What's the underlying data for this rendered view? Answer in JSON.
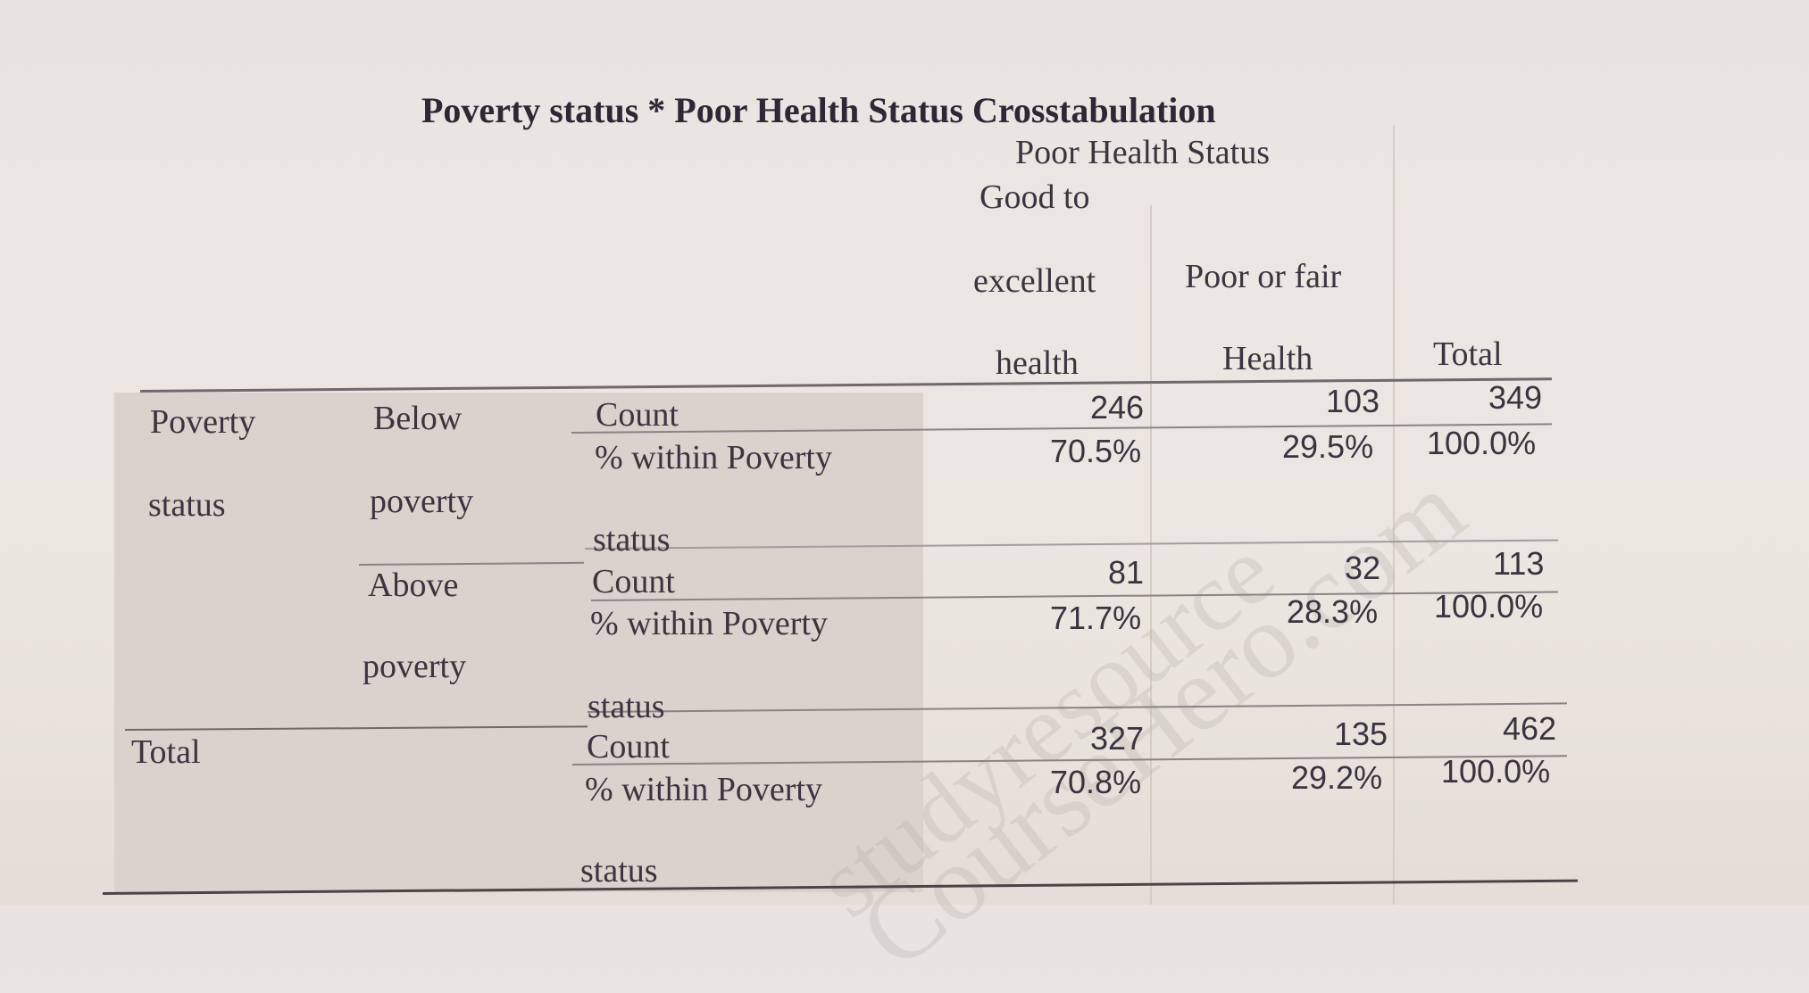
{
  "table": {
    "title": "Poverty status * Poor Health Status Crosstabulation",
    "column_group_header": "Poor Health Status",
    "columns": {
      "good": [
        "Good to",
        "excellent",
        "health"
      ],
      "poor": [
        "Poor or fair",
        "Health"
      ],
      "total": "Total"
    },
    "row_var": [
      "Poverty",
      "status"
    ],
    "rows": [
      {
        "group": [
          "Below",
          "poverty"
        ],
        "count_label": "Count",
        "pct_label": [
          "% within Poverty",
          "status"
        ],
        "count": {
          "good": "246",
          "poor": "103",
          "total": "349"
        },
        "pct": {
          "good": "70.5%",
          "poor": "29.5%",
          "total": "100.0%"
        }
      },
      {
        "group": [
          "Above",
          "poverty"
        ],
        "count_label": "Count",
        "pct_label": [
          "% within Poverty",
          "status"
        ],
        "count": {
          "good": "81",
          "poor": "32",
          "total": "113"
        },
        "pct": {
          "good": "71.7%",
          "poor": "28.3%",
          "total": "100.0%"
        }
      }
    ],
    "total_row": {
      "label": "Total",
      "count_label": "Count",
      "pct_label": [
        "% within Poverty",
        "status"
      ],
      "count": {
        "good": "327",
        "poor": "135",
        "total": "462"
      },
      "pct": {
        "good": "70.8%",
        "poor": "29.2%",
        "total": "100.0%"
      }
    }
  },
  "watermark": {
    "line1": "studyresource",
    "line2": "CourseHero.com"
  }
}
